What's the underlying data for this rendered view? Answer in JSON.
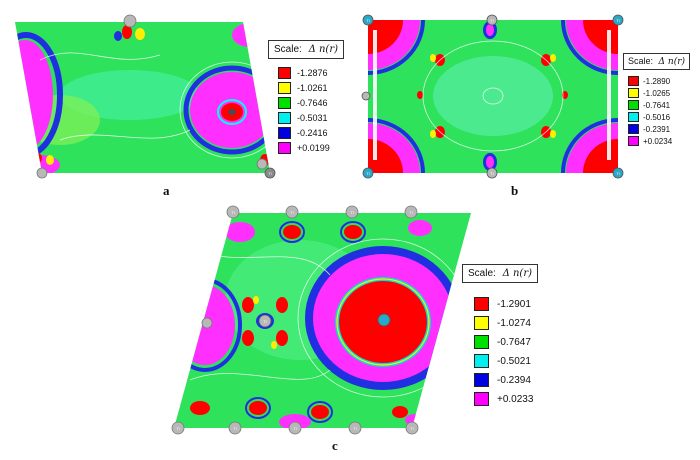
{
  "scale_title": "Scale:",
  "delta_symbol": "Δ n(r)",
  "legend_colors": [
    "#ff0000",
    "#ffff00",
    "#00e000",
    "#00f0f0",
    "#0000e0",
    "#ff00ff"
  ],
  "panels": [
    {
      "caption": "a",
      "values": [
        "-1.2876",
        "-1.0261",
        "-0.7646",
        "-0.5031",
        "-0.2416",
        "+0.0199"
      ],
      "atom_labels": [
        "",
        "",
        "",
        "Ti"
      ]
    },
    {
      "caption": "b",
      "values": [
        "-1.2890",
        "-1.0265",
        "-0.7641",
        "-0.5016",
        "-0.2391",
        "+0.0234"
      ],
      "atom_labels": [
        "Ti",
        "Ti",
        "Ti",
        "Ti",
        "Ti",
        "Ti"
      ]
    },
    {
      "caption": "c",
      "values": [
        "-1.2901",
        "-1.0274",
        "-0.7647",
        "-0.5021",
        "-0.2394",
        "+0.0233"
      ],
      "atom_labels": [
        "Ti",
        "Ti",
        "Ti",
        "Ti",
        "Ti",
        "Ti",
        "Ti",
        "Ti",
        "Ti",
        "Ti"
      ]
    }
  ]
}
